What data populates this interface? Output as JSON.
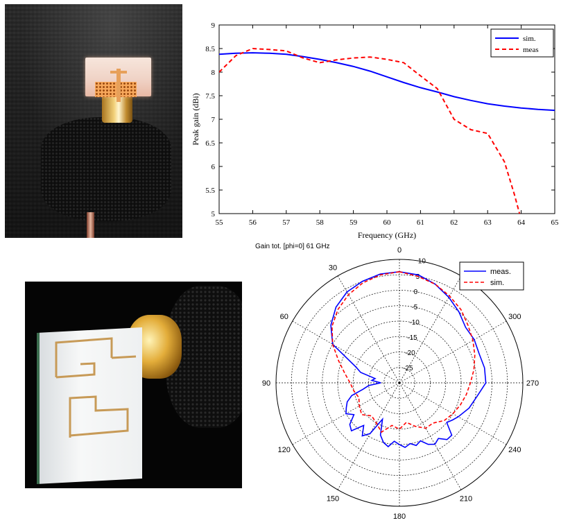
{
  "chart_data": [
    {
      "type": "line",
      "title": "",
      "xlabel": "Frequency (GHz)",
      "ylabel": "Peak gain (dBi)",
      "xlim": [
        55,
        65
      ],
      "ylim": [
        5,
        9
      ],
      "xticks": [
        "55",
        "56",
        "57",
        "58",
        "59",
        "60",
        "61",
        "62",
        "63",
        "64",
        "65"
      ],
      "yticks": [
        "5",
        "5.5",
        "6",
        "6.5",
        "7",
        "7.5",
        "8",
        "8.5",
        "9"
      ],
      "grid": false,
      "legend_position": "top-right",
      "series": [
        {
          "name": "sim.",
          "color": "#0000ff",
          "dash": "solid",
          "x": [
            55,
            55.5,
            56,
            56.5,
            57,
            57.5,
            58,
            58.5,
            59,
            59.5,
            60,
            60.5,
            61,
            61.5,
            62,
            62.5,
            63,
            63.5,
            64,
            64.5,
            65
          ],
          "y": [
            8.38,
            8.4,
            8.41,
            8.4,
            8.38,
            8.33,
            8.27,
            8.2,
            8.12,
            8.02,
            7.9,
            7.78,
            7.67,
            7.58,
            7.48,
            7.4,
            7.33,
            7.28,
            7.24,
            7.21,
            7.19
          ]
        },
        {
          "name": "meas",
          "color": "#ff0000",
          "dash": "dashed",
          "x": [
            55,
            55.5,
            56,
            56.5,
            57,
            57.5,
            58,
            58.5,
            59,
            59.5,
            60,
            60.5,
            61,
            61.5,
            62,
            62.5,
            63,
            63.5,
            63.8,
            63.95
          ],
          "y": [
            8.0,
            8.35,
            8.5,
            8.48,
            8.45,
            8.3,
            8.2,
            8.26,
            8.3,
            8.32,
            8.27,
            8.2,
            7.92,
            7.65,
            7.0,
            6.78,
            6.7,
            6.1,
            5.4,
            5.0
          ]
        }
      ]
    },
    {
      "type": "polar",
      "title": "Gain tot. [phi=0] 61 GHz",
      "angle_direction": "counterclockwise",
      "zero_angle_position": "top",
      "angle_ticks": [
        "0",
        "30",
        "60",
        "90",
        "120",
        "150",
        "180",
        "210",
        "240",
        "270",
        "300",
        "330"
      ],
      "radial_ticks": [
        "10",
        "5",
        "0",
        "-5",
        "-10",
        "-15",
        "-20",
        "-25"
      ],
      "rlim": [
        -30,
        10
      ],
      "legend_position": "top-right",
      "series": [
        {
          "name": "meas.",
          "color": "#0000ff",
          "dash": "solid",
          "theta": [
            0,
            10,
            20,
            30,
            40,
            50,
            60,
            70,
            75,
            80,
            85,
            90,
            95,
            100,
            105,
            110,
            115,
            120,
            125,
            130,
            135,
            140,
            145,
            150,
            155,
            160,
            165,
            170,
            175,
            180,
            185,
            190,
            195,
            200,
            205,
            210,
            215,
            220,
            225,
            230,
            235,
            240,
            250,
            260,
            270,
            280,
            290,
            300,
            310,
            320,
            330,
            340,
            350,
            360
          ],
          "r": [
            6.0,
            5.8,
            5.0,
            4.0,
            2.0,
            -1.0,
            -5.0,
            -15.0,
            -17.0,
            -22.0,
            -21.0,
            -24.0,
            -20.0,
            -18.0,
            -14.0,
            -12.0,
            -11.0,
            -10.0,
            -12.0,
            -9.0,
            -8.0,
            -12.0,
            -9.0,
            -11.0,
            -17.0,
            -12.0,
            -10.0,
            -9.0,
            -11.0,
            -10.0,
            -9.0,
            -10.0,
            -9.0,
            -10.0,
            -8.0,
            -7.0,
            -8.0,
            -6.0,
            -6.0,
            -10.0,
            -9.0,
            -8.0,
            -6.0,
            -4.5,
            -2.0,
            -2.0,
            -2.5,
            -2.0,
            -2.0,
            0.0,
            2.0,
            4.0,
            5.5,
            6.0
          ]
        },
        {
          "name": "sim.",
          "color": "#ff0000",
          "dash": "dashed",
          "theta": [
            0,
            10,
            20,
            30,
            40,
            50,
            60,
            70,
            80,
            90,
            100,
            110,
            120,
            130,
            140,
            150,
            160,
            170,
            180,
            190,
            200,
            210,
            220,
            230,
            240,
            250,
            260,
            270,
            280,
            290,
            300,
            310,
            320,
            330,
            340,
            350,
            360
          ],
          "r": [
            6.0,
            5.5,
            4.5,
            3.0,
            1.0,
            -1.5,
            -5.0,
            -9.0,
            -12.0,
            -14.0,
            -15.0,
            -16.0,
            -15.0,
            -14.0,
            -16.0,
            -15.0,
            -13.0,
            -16.0,
            -15.0,
            -17.0,
            -15.0,
            -13.0,
            -13.0,
            -11.0,
            -10.0,
            -9.0,
            -8.0,
            -7.0,
            -5.5,
            -4.0,
            -2.5,
            -1.0,
            1.0,
            2.5,
            4.0,
            5.0,
            6.0
          ]
        }
      ]
    }
  ]
}
